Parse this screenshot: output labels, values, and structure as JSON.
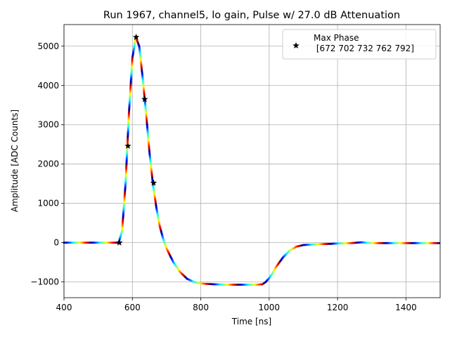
{
  "chart_data": {
    "type": "scatter",
    "title": "Run 1967, channel5, lo gain, Pulse w/ 27.0 dB Attenuation",
    "xlabel": "Time [ns]",
    "ylabel": "Amplitude [ADC Counts]",
    "xlim": [
      400,
      1500
    ],
    "ylim": [
      -1400,
      5550
    ],
    "xticks": [
      400,
      600,
      800,
      1000,
      1200,
      1400
    ],
    "yticks": [
      -1000,
      0,
      1000,
      2000,
      3000,
      4000,
      5000
    ],
    "xtick_labels": [
      "400",
      "600",
      "800",
      "1000",
      "1200",
      "1400"
    ],
    "ytick_labels": [
      "−1000",
      "0",
      "1000",
      "2000",
      "3000",
      "4000",
      "5000"
    ],
    "grid": true,
    "legend_placement": "top-right",
    "colormap": "jet",
    "pulse_curve": {
      "x": [
        400,
        540,
        560,
        570,
        580,
        590,
        600,
        610,
        620,
        630,
        640,
        650,
        660,
        670,
        680,
        690,
        700,
        720,
        740,
        760,
        780,
        800,
        840,
        880,
        920,
        960,
        980,
        990,
        1000,
        1010,
        1020,
        1040,
        1060,
        1080,
        1100,
        1140,
        1180,
        1200,
        1240,
        1270,
        1300,
        1350,
        1400,
        1450,
        1500
      ],
      "y": [
        0,
        0,
        0,
        300,
        1500,
        3300,
        4700,
        5230,
        5000,
        4200,
        3300,
        2300,
        1500,
        900,
        420,
        100,
        -150,
        -500,
        -750,
        -920,
        -1000,
        -1040,
        -1060,
        -1070,
        -1070,
        -1070,
        -1060,
        -1000,
        -900,
        -780,
        -620,
        -380,
        -200,
        -100,
        -60,
        -40,
        -30,
        -20,
        -10,
        10,
        -10,
        -10,
        -10,
        -10,
        -10
      ]
    },
    "series": [
      {
        "name": "Max Phase\n [672 702 732 762 792]",
        "marker": "star",
        "color": "#000000",
        "x": [
          562,
          587,
          611,
          636,
          662
        ],
        "y": [
          0,
          2460,
          5230,
          3650,
          1520
        ]
      }
    ]
  }
}
